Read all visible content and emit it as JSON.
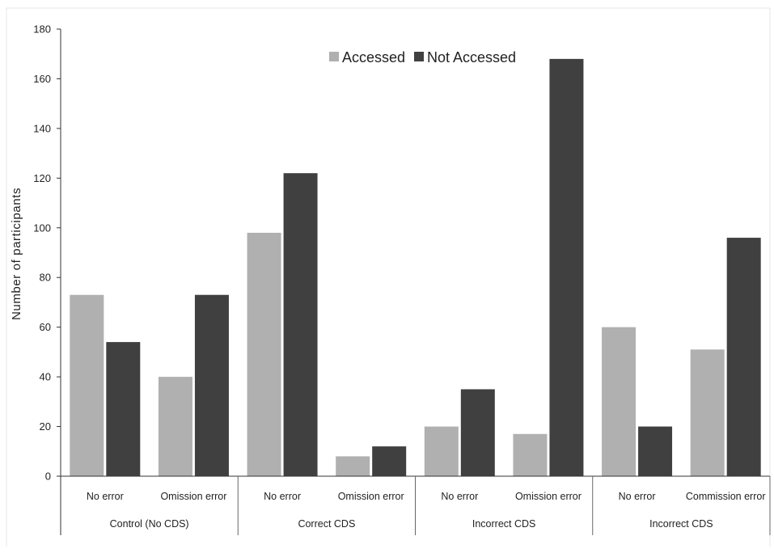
{
  "chart_data": {
    "type": "bar",
    "title": "",
    "ylabel": "Number of participants",
    "xlabel": "",
    "ylim": [
      0,
      180
    ],
    "yticks": [
      0,
      20,
      40,
      60,
      80,
      100,
      120,
      140,
      160,
      180
    ],
    "grid": false,
    "legend_position": "top-center",
    "groups": [
      {
        "label": "Control (No CDS)",
        "categories": [
          "No error",
          "Omission error"
        ]
      },
      {
        "label": "Correct CDS",
        "categories": [
          "No error",
          "Omission error"
        ]
      },
      {
        "label": "Incorrect CDS",
        "categories": [
          "No error",
          "Omission error"
        ]
      },
      {
        "label": "Incorrect CDS",
        "categories": [
          "No error",
          "Commission error"
        ]
      }
    ],
    "categories": [
      "No error",
      "Omission error",
      "No error",
      "Omission error",
      "No error",
      "Omission error",
      "No error",
      "Commission error"
    ],
    "series": [
      {
        "name": "Accessed",
        "color": "#b0b0b0",
        "values": [
          73,
          40,
          98,
          8,
          20,
          17,
          60,
          51
        ]
      },
      {
        "name": "Not Accessed",
        "color": "#404040",
        "values": [
          54,
          73,
          122,
          12,
          35,
          168,
          20,
          96
        ]
      }
    ]
  }
}
